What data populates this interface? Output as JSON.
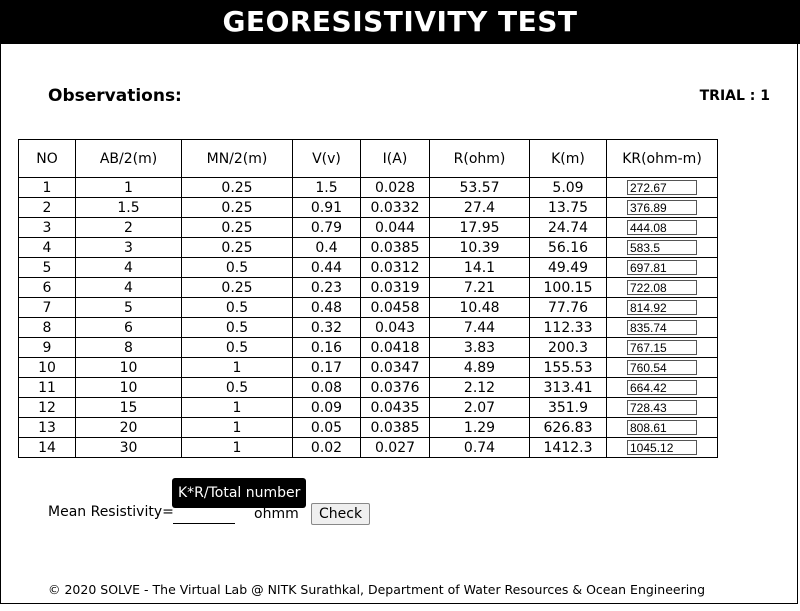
{
  "header": {
    "title": "GEORESISTIVITY TEST"
  },
  "observations_label": "Observations:",
  "trial_label": "TRIAL : 1",
  "table": {
    "headers": [
      "NO",
      "AB/2(m)",
      "MN/2(m)",
      "V(v)",
      "I(A)",
      "R(ohm)",
      "K(m)",
      "KR(ohm-m)"
    ],
    "rows": [
      [
        "1",
        "1",
        "0.25",
        "1.5",
        "0.028",
        "53.57",
        "5.09",
        "272.67"
      ],
      [
        "2",
        "1.5",
        "0.25",
        "0.91",
        "0.0332",
        "27.4",
        "13.75",
        "376.89"
      ],
      [
        "3",
        "2",
        "0.25",
        "0.79",
        "0.044",
        "17.95",
        "24.74",
        "444.08"
      ],
      [
        "4",
        "3",
        "0.25",
        "0.4",
        "0.0385",
        "10.39",
        "56.16",
        "583.5"
      ],
      [
        "5",
        "4",
        "0.5",
        "0.44",
        "0.0312",
        "14.1",
        "49.49",
        "697.81"
      ],
      [
        "6",
        "4",
        "0.25",
        "0.23",
        "0.0319",
        "7.21",
        "100.15",
        "722.08"
      ],
      [
        "7",
        "5",
        "0.5",
        "0.48",
        "0.0458",
        "10.48",
        "77.76",
        "814.92"
      ],
      [
        "8",
        "6",
        "0.5",
        "0.32",
        "0.043",
        "7.44",
        "112.33",
        "835.74"
      ],
      [
        "9",
        "8",
        "0.5",
        "0.16",
        "0.0418",
        "3.83",
        "200.3",
        "767.15"
      ],
      [
        "10",
        "10",
        "1",
        "0.17",
        "0.0347",
        "4.89",
        "155.53",
        "760.54"
      ],
      [
        "11",
        "10",
        "0.5",
        "0.08",
        "0.0376",
        "2.12",
        "313.41",
        "664.42"
      ],
      [
        "12",
        "15",
        "1",
        "0.09",
        "0.0435",
        "2.07",
        "351.9",
        "728.43"
      ],
      [
        "13",
        "20",
        "1",
        "0.05",
        "0.0385",
        "1.29",
        "626.83",
        "808.61"
      ],
      [
        "14",
        "30",
        "1",
        "0.02",
        "0.027",
        "0.74",
        "1412.3",
        "1045.12"
      ]
    ]
  },
  "tooltip": "K*R/Total number",
  "mean": {
    "label": "Mean Resistivity=",
    "value": "",
    "unit": "ohmm",
    "check_label": "Check"
  },
  "footer": "© 2020 SOLVE - The Virtual Lab @ NITK Surathkal, Department of Water Resources & Ocean Engineering"
}
